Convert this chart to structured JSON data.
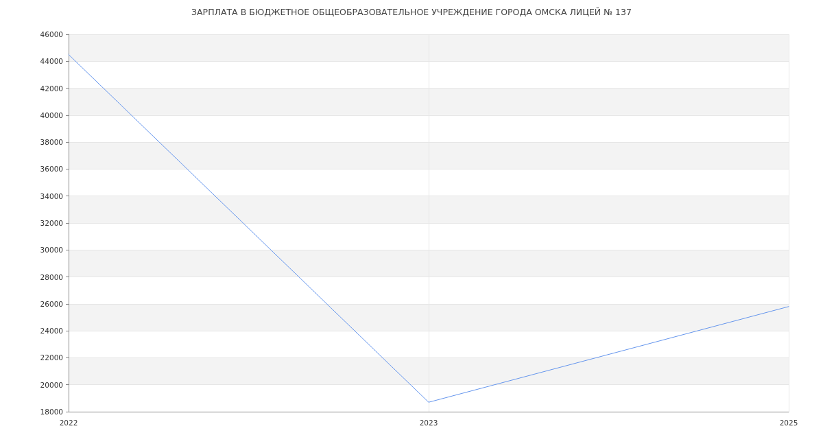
{
  "chart_data": {
    "type": "line",
    "title": "ЗАРПЛАТА В БЮДЖЕТНОЕ ОБЩЕОБРАЗОВАТЕЛЬНОЕ УЧРЕЖДЕНИЕ ГОРОДА ОМСКА ЛИЦЕЙ № 137",
    "categories": [
      "2022",
      "2023",
      "2025"
    ],
    "series": [
      {
        "color": "#6495ed",
        "values": [
          44500,
          18700,
          25800
        ]
      }
    ],
    "ylim": [
      18000,
      46000
    ],
    "yticks": [
      18000,
      20000,
      22000,
      24000,
      26000,
      28000,
      30000,
      32000,
      34000,
      36000,
      38000,
      40000,
      42000,
      44000,
      46000
    ],
    "grid": true,
    "marker": "none",
    "line_style": "solid"
  }
}
